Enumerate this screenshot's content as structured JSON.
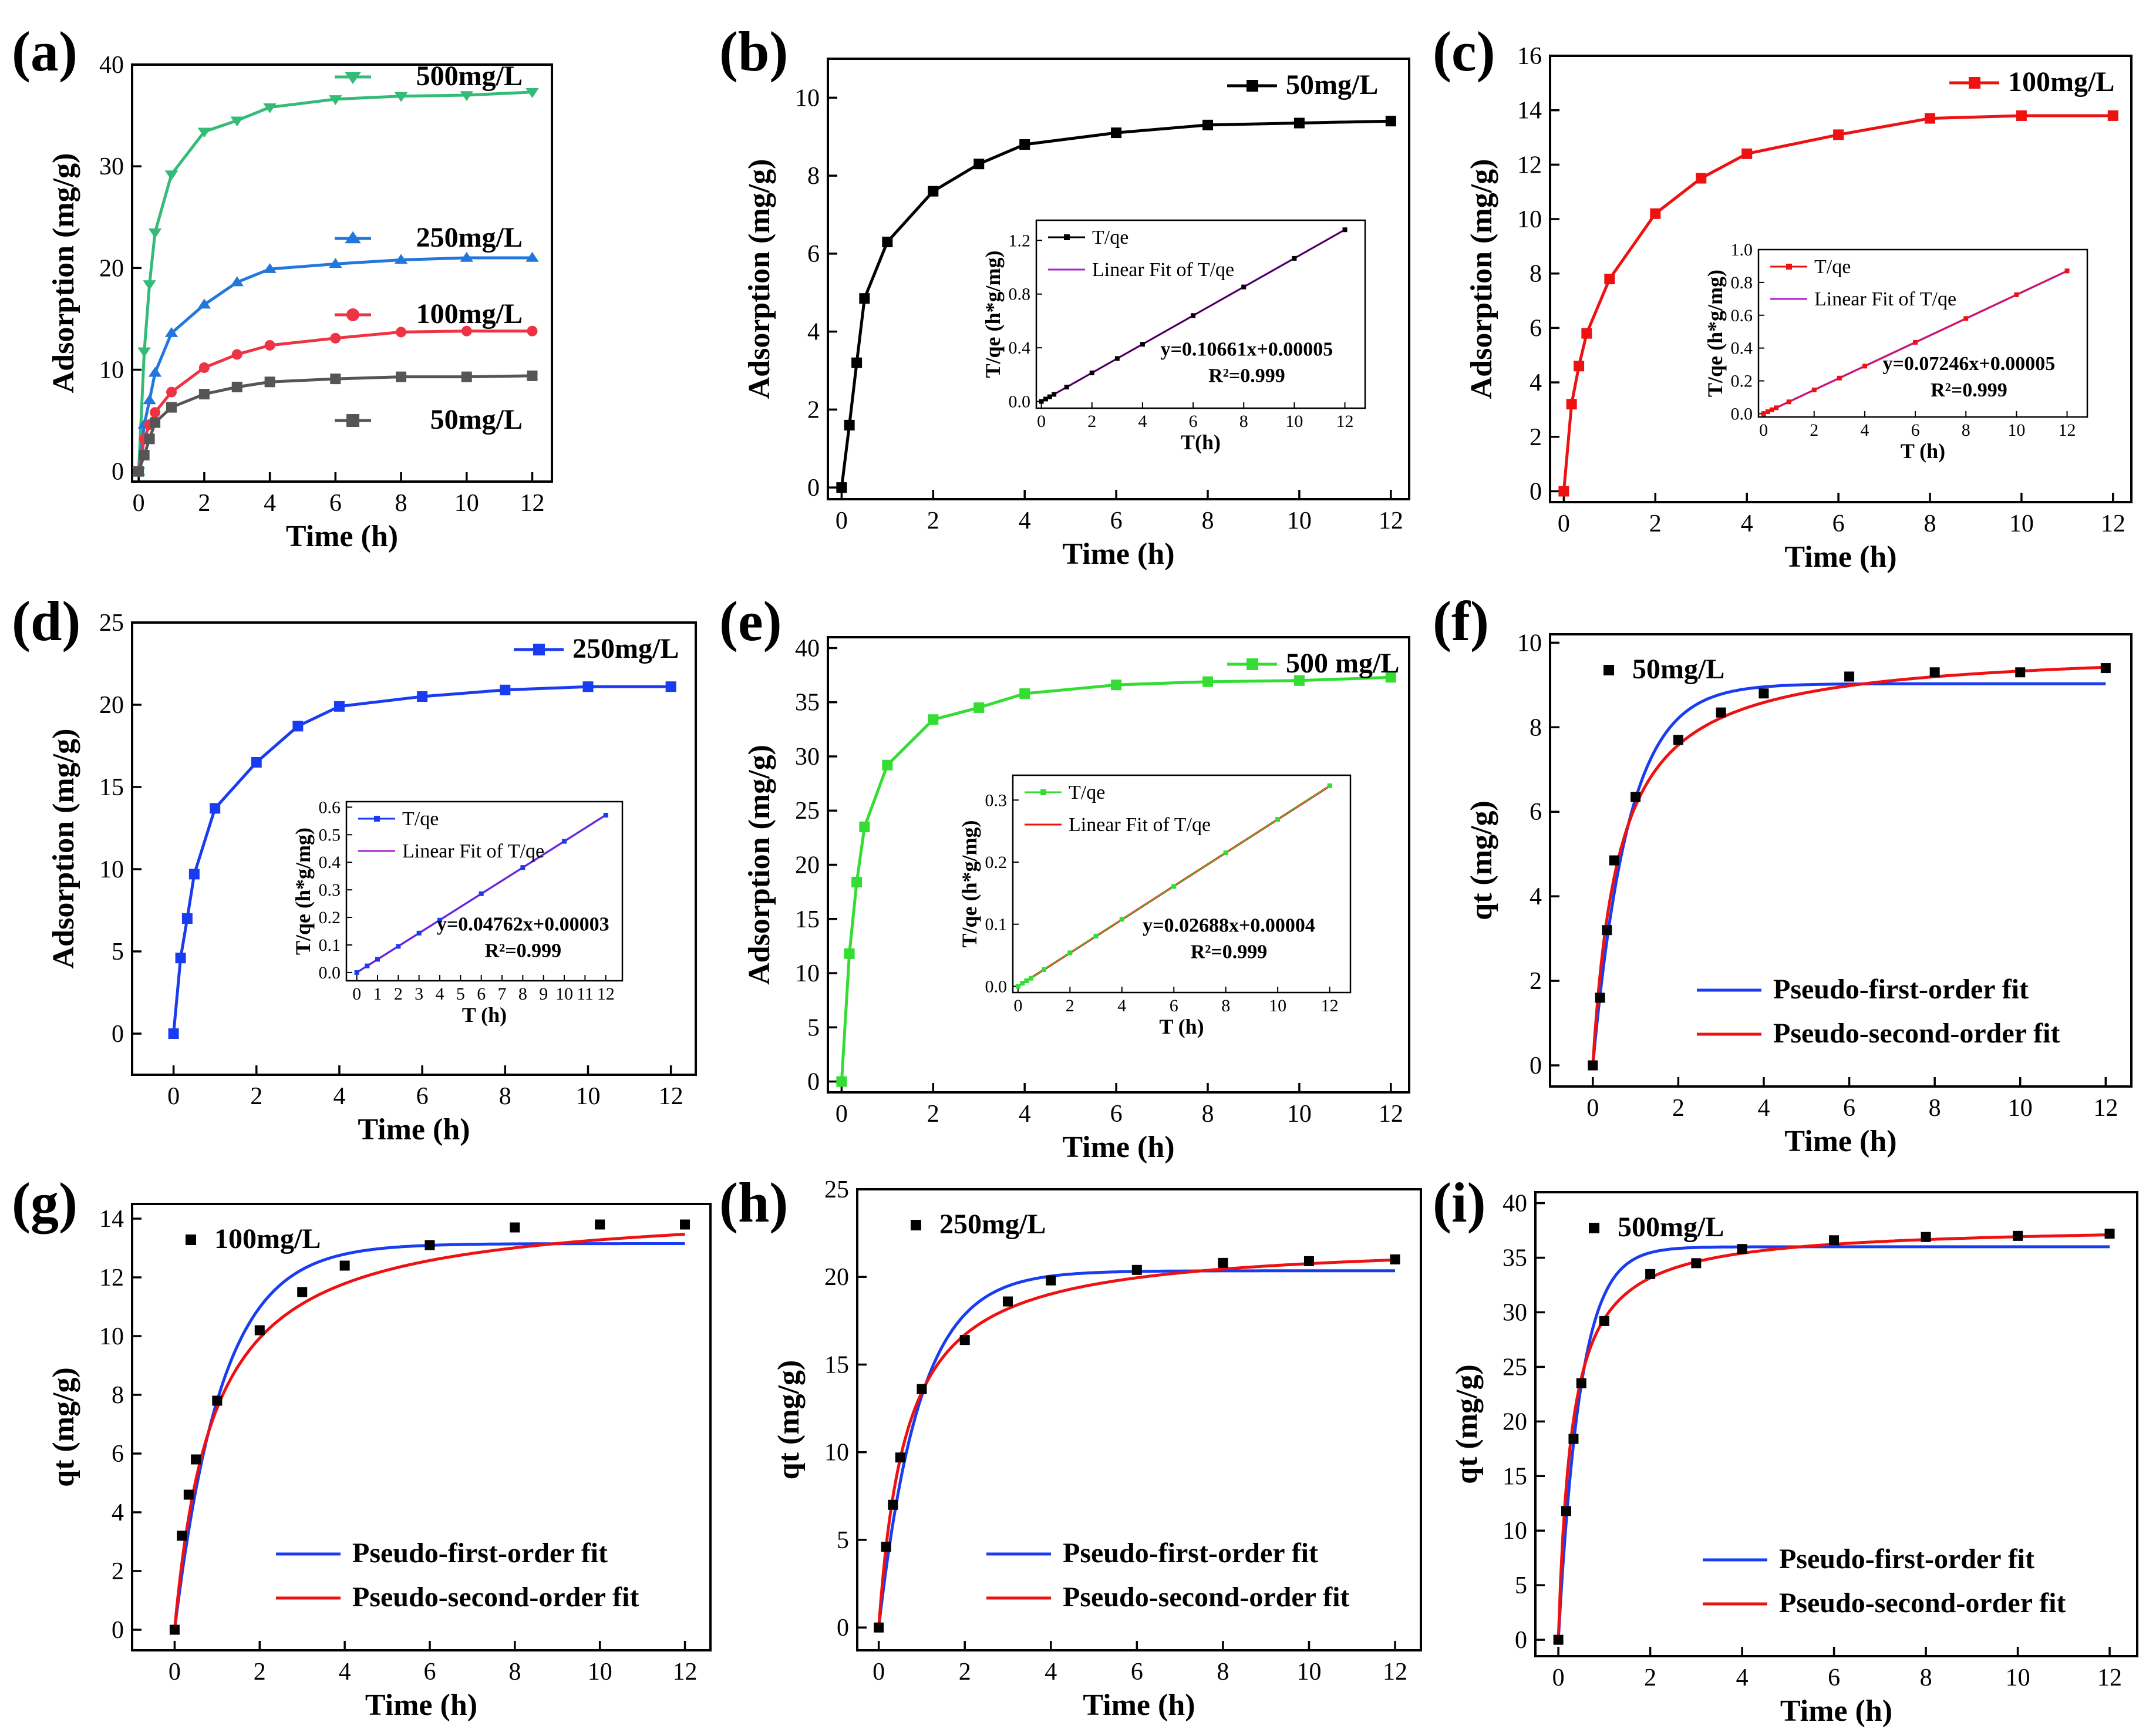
{
  "figure": {
    "colors": {
      "black": "#000000",
      "red": "#ee1111",
      "blue": "#1a3cf0",
      "green": "#33dd33",
      "purple": "#aa22cc",
      "gray": "#555555"
    }
  },
  "chart_data": [
    {
      "id": "a",
      "type": "line",
      "panel_label": "(a)",
      "xlabel": "Time (h)",
      "ylabel": "Adsorption (mg/g)",
      "xlim": [
        -0.2,
        12.6
      ],
      "ylim": [
        -1,
        40
      ],
      "xticks": [
        0,
        2,
        4,
        6,
        8,
        10,
        12
      ],
      "yticks": [
        0,
        10,
        20,
        30,
        40
      ],
      "x": [
        0,
        0.17,
        0.33,
        0.5,
        1,
        2,
        3,
        4,
        6,
        8,
        10,
        12
      ],
      "series": [
        {
          "name": "500mg/L",
          "color": "#33bb77",
          "marker": "triangle-down",
          "values": [
            0,
            11.8,
            18.4,
            23.5,
            29.2,
            33.4,
            34.5,
            35.8,
            36.6,
            36.9,
            37.0,
            37.3
          ]
        },
        {
          "name": "250mg/L",
          "color": "#2277dd",
          "marker": "triangle-up",
          "values": [
            0,
            4.6,
            7.0,
            9.7,
            13.6,
            16.4,
            18.6,
            19.9,
            20.4,
            20.8,
            21.0,
            21.0
          ]
        },
        {
          "name": "100mg/L",
          "color": "#ee3344",
          "marker": "circle",
          "values": [
            0,
            3.2,
            4.6,
            5.8,
            7.8,
            10.2,
            11.5,
            12.4,
            13.1,
            13.7,
            13.8,
            13.8
          ]
        },
        {
          "name": "50mg/L",
          "color": "#555555",
          "marker": "square",
          "values": [
            0,
            1.6,
            3.2,
            4.8,
            6.3,
            7.6,
            8.3,
            8.8,
            9.1,
            9.3,
            9.3,
            9.4
          ]
        }
      ],
      "legend_position": "labels beside curves"
    },
    {
      "id": "b",
      "type": "line",
      "panel_label": "(b)",
      "xlabel": "Time (h)",
      "ylabel": "Adsorption (mg/g)",
      "xlim": [
        -0.3,
        12.4
      ],
      "ylim": [
        -0.3,
        11
      ],
      "xticks": [
        0,
        2,
        4,
        6,
        8,
        10,
        12
      ],
      "yticks": [
        0,
        2,
        4,
        6,
        8,
        10
      ],
      "x": [
        0,
        0.17,
        0.33,
        0.5,
        1,
        2,
        3,
        4,
        6,
        8,
        10,
        12
      ],
      "series": [
        {
          "name": "50mg/L",
          "color": "#000000",
          "marker": "square",
          "values": [
            0,
            1.6,
            3.2,
            4.85,
            6.3,
            7.6,
            8.3,
            8.8,
            9.1,
            9.3,
            9.35,
            9.4
          ]
        }
      ],
      "legend_position": "top-right",
      "inset": {
        "xlabel": "T(h)",
        "ylabel": "T/qe (h*g/mg)",
        "xlim": [
          -0.2,
          12.8
        ],
        "ylim": [
          -0.05,
          1.35
        ],
        "xticks": [
          0,
          2,
          4,
          6,
          8,
          10,
          12
        ],
        "yticks": [
          0.0,
          0.4,
          0.8,
          1.2
        ],
        "x": [
          0,
          0.17,
          0.33,
          0.5,
          1,
          2,
          3,
          4,
          6,
          8,
          10,
          12
        ],
        "values": [
          0,
          0.018,
          0.035,
          0.053,
          0.107,
          0.213,
          0.32,
          0.426,
          0.64,
          0.853,
          1.066,
          1.279
        ],
        "fit": {
          "slope": 0.10661,
          "intercept": 5e-05
        },
        "points_name": "T/qe",
        "fit_name": "Linear Fit of T/qe",
        "points_color": "#000000",
        "fit_color": "#aa22cc",
        "equation": "y=0.10661x+0.00005",
        "r2": "R²=0.999",
        "legend_position": "top-left"
      }
    },
    {
      "id": "c",
      "type": "line",
      "panel_label": "(c)",
      "xlabel": "Time (h)",
      "ylabel": "Adsorption (mg/g)",
      "xlim": [
        -0.3,
        12.4
      ],
      "ylim": [
        -0.4,
        16
      ],
      "xticks": [
        0,
        2,
        4,
        6,
        8,
        10,
        12
      ],
      "yticks": [
        0,
        2,
        4,
        6,
        8,
        10,
        12,
        14,
        16
      ],
      "x": [
        0,
        0.17,
        0.33,
        0.5,
        1,
        2,
        3,
        4,
        6,
        8,
        10,
        12
      ],
      "series": [
        {
          "name": "100mg/L",
          "color": "#ee1111",
          "marker": "square",
          "values": [
            0,
            3.2,
            4.6,
            5.8,
            7.8,
            10.2,
            11.5,
            12.4,
            13.1,
            13.7,
            13.8,
            13.8
          ]
        }
      ],
      "legend_position": "top-right",
      "inset": {
        "xlabel": "T (h)",
        "ylabel": "T/qe (h*g/mg)",
        "xlim": [
          -0.2,
          12.8
        ],
        "ylim": [
          -0.02,
          1.0
        ],
        "xticks": [
          0,
          2,
          4,
          6,
          8,
          10,
          12
        ],
        "yticks": [
          0.0,
          0.2,
          0.4,
          0.6,
          0.8,
          1.0
        ],
        "x": [
          0,
          0.17,
          0.33,
          0.5,
          1,
          2,
          3,
          4,
          6,
          8,
          10,
          12
        ],
        "values": [
          0,
          0.012,
          0.024,
          0.036,
          0.072,
          0.145,
          0.217,
          0.29,
          0.435,
          0.58,
          0.725,
          0.87
        ],
        "fit": {
          "slope": 0.07246,
          "intercept": 5e-05
        },
        "points_name": "T/qe",
        "fit_name": "Linear Fit of T/qe",
        "points_color": "#ee1111",
        "fit_color": "#aa22cc",
        "equation": "y=0.07246x+0.00005",
        "r2": "R²=0.999",
        "legend_position": "top-left"
      }
    },
    {
      "id": "d",
      "type": "line",
      "panel_label": "(d)",
      "xlabel": "Time (h)",
      "ylabel": "Adsorption (mg/g)",
      "xlim": [
        -1,
        12.6
      ],
      "ylim": [
        -2.5,
        25
      ],
      "xticks": [
        0,
        2,
        4,
        6,
        8,
        10,
        12
      ],
      "yticks": [
        0,
        5,
        10,
        15,
        20,
        25
      ],
      "x": [
        0,
        0.17,
        0.33,
        0.5,
        1,
        2,
        3,
        4,
        6,
        8,
        10,
        12
      ],
      "series": [
        {
          "name": "250mg/L",
          "color": "#1a3cf0",
          "marker": "square",
          "values": [
            0,
            4.6,
            7.0,
            9.7,
            13.7,
            16.5,
            18.7,
            19.9,
            20.5,
            20.9,
            21.1,
            21.1
          ]
        }
      ],
      "legend_position": "top-right",
      "inset": {
        "xlabel": "T (h)",
        "ylabel": "T/qe (h*g/mg)",
        "xlim": [
          -0.5,
          12.8
        ],
        "ylim": [
          -0.03,
          0.62
        ],
        "xticks": [
          0,
          1,
          2,
          3,
          4,
          5,
          6,
          7,
          8,
          9,
          10,
          11,
          12
        ],
        "yticks": [
          0.0,
          0.1,
          0.2,
          0.3,
          0.4,
          0.5,
          0.6
        ],
        "x": [
          0,
          0.5,
          1,
          2,
          3,
          4,
          6,
          8,
          10,
          12
        ],
        "values": [
          0,
          0.024,
          0.048,
          0.095,
          0.143,
          0.19,
          0.286,
          0.381,
          0.476,
          0.571
        ],
        "fit": {
          "slope": 0.04762,
          "intercept": 3e-05
        },
        "points_name": "T/qe",
        "fit_name": "Linear Fit of T/qe",
        "points_color": "#1a3cf0",
        "fit_color": "#aa22cc",
        "equation": "y=0.04762x+0.00003",
        "r2": "R²=0.999",
        "legend_position": "top-left"
      }
    },
    {
      "id": "e",
      "type": "line",
      "panel_label": "(e)",
      "xlabel": "Time (h)",
      "ylabel": "Adsorption (mg/g)",
      "xlim": [
        -0.3,
        12.4
      ],
      "ylim": [
        -1,
        41
      ],
      "xticks": [
        0,
        2,
        4,
        6,
        8,
        10,
        12
      ],
      "yticks": [
        0,
        5,
        10,
        15,
        20,
        25,
        30,
        35,
        40
      ],
      "x": [
        0,
        0.17,
        0.33,
        0.5,
        1,
        2,
        3,
        4,
        6,
        8,
        10,
        12
      ],
      "series": [
        {
          "name": "500 mg/L",
          "color": "#33dd33",
          "marker": "square",
          "values": [
            0,
            11.8,
            18.4,
            23.5,
            29.2,
            33.4,
            34.5,
            35.8,
            36.6,
            36.9,
            37.0,
            37.3
          ]
        }
      ],
      "legend_position": "top-right",
      "inset": {
        "xlabel": "T (h)",
        "ylabel": "T/qe (h*g/mg)",
        "xlim": [
          -0.2,
          12.8
        ],
        "ylim": [
          -0.01,
          0.34
        ],
        "xticks": [
          0,
          2,
          4,
          6,
          8,
          10,
          12
        ],
        "yticks": [
          0.0,
          0.1,
          0.2,
          0.3
        ],
        "x": [
          0,
          0.17,
          0.33,
          0.5,
          1,
          2,
          3,
          4,
          6,
          8,
          10,
          12
        ],
        "values": [
          0,
          0.005,
          0.009,
          0.013,
          0.027,
          0.054,
          0.081,
          0.108,
          0.161,
          0.215,
          0.269,
          0.323
        ],
        "fit": {
          "slope": 0.02688,
          "intercept": 4e-05
        },
        "points_name": "T/qe",
        "fit_name": "Linear Fit of T/qe",
        "points_color": "#33dd33",
        "fit_color": "#ee1111",
        "equation": "y=0.02688x+0.00004",
        "r2": "R²=0.999",
        "legend_position": "top-left"
      }
    },
    {
      "id": "f",
      "type": "scatter",
      "panel_label": "(f)",
      "xlabel": "Time (h)",
      "ylabel": "qt (mg/g)",
      "xlim": [
        -1,
        12.6
      ],
      "ylim": [
        -0.5,
        10.2
      ],
      "xticks": [
        0,
        2,
        4,
        6,
        8,
        10,
        12
      ],
      "yticks": [
        0,
        2,
        4,
        6,
        8,
        10
      ],
      "x": [
        0,
        0.17,
        0.33,
        0.5,
        1,
        2,
        3,
        4,
        6,
        8,
        10,
        12
      ],
      "points": {
        "name": "50mg/L",
        "color": "#000000",
        "values": [
          0,
          1.6,
          3.2,
          4.85,
          6.35,
          7.7,
          8.35,
          8.8,
          9.2,
          9.3,
          9.3,
          9.4
        ]
      },
      "fits": [
        {
          "name": "Pseudo-first-order fit",
          "color": "#1a3cf0",
          "model": "pfo",
          "qe": 9.03,
          "k": 1.2
        },
        {
          "name": "Pseudo-second-order fit",
          "color": "#ee1111",
          "model": "pso",
          "qe": 9.9,
          "k": 0.165
        }
      ],
      "legend_position": "bottom-right"
    },
    {
      "id": "g",
      "type": "scatter",
      "panel_label": "(g)",
      "xlabel": "Time (h)",
      "ylabel": "qt (mg/g)",
      "xlim": [
        -1,
        12.6
      ],
      "ylim": [
        -0.7,
        14.5
      ],
      "xticks": [
        0,
        2,
        4,
        6,
        8,
        10,
        12
      ],
      "yticks": [
        0,
        2,
        4,
        6,
        8,
        10,
        12,
        14
      ],
      "x": [
        0,
        0.17,
        0.33,
        0.5,
        1,
        2,
        3,
        4,
        6,
        8,
        10,
        12
      ],
      "points": {
        "name": "100mg/L",
        "color": "#000000",
        "values": [
          0,
          3.2,
          4.6,
          5.8,
          7.8,
          10.2,
          11.5,
          12.4,
          13.1,
          13.7,
          13.8,
          13.8
        ]
      },
      "fits": [
        {
          "name": "Pseudo-first-order fit",
          "color": "#1a3cf0",
          "model": "pfo",
          "qe": 13.15,
          "k": 0.9
        },
        {
          "name": "Pseudo-second-order fit",
          "color": "#ee1111",
          "model": "pso",
          "qe": 14.5,
          "k": 0.075
        }
      ],
      "legend_position": "bottom-right"
    },
    {
      "id": "h",
      "type": "scatter",
      "panel_label": "(h)",
      "xlabel": "Time (h)",
      "ylabel": "qt (mg/g)",
      "xlim": [
        -0.5,
        12.6
      ],
      "ylim": [
        -1.3,
        25
      ],
      "xticks": [
        0,
        2,
        4,
        6,
        8,
        10,
        12
      ],
      "yticks": [
        0,
        5,
        10,
        15,
        20,
        25
      ],
      "x": [
        0,
        0.17,
        0.33,
        0.5,
        1,
        2,
        3,
        4,
        6,
        8,
        10,
        12
      ],
      "points": {
        "name": "250mg/L",
        "color": "#000000",
        "values": [
          0,
          4.6,
          7.0,
          9.7,
          13.6,
          16.4,
          18.6,
          19.8,
          20.4,
          20.8,
          20.9,
          21.0
        ]
      },
      "fits": [
        {
          "name": "Pseudo-first-order fit",
          "color": "#1a3cf0",
          "model": "pfo",
          "qe": 20.35,
          "k": 1.05
        },
        {
          "name": "Pseudo-second-order fit",
          "color": "#ee1111",
          "model": "pso",
          "qe": 22.1,
          "k": 0.07
        }
      ],
      "legend_position": "bottom-right"
    },
    {
      "id": "i",
      "type": "scatter",
      "panel_label": "(i)",
      "xlabel": "Time (h)",
      "ylabel": "qt (mg/g)",
      "xlim": [
        -0.5,
        12.6
      ],
      "ylim": [
        -1.5,
        41
      ],
      "xticks": [
        0,
        2,
        4,
        6,
        8,
        10,
        12
      ],
      "yticks": [
        0,
        5,
        10,
        15,
        20,
        25,
        30,
        35,
        40
      ],
      "x": [
        0,
        0.17,
        0.33,
        0.5,
        1,
        2,
        3,
        4,
        6,
        8,
        10,
        12
      ],
      "points": {
        "name": "500mg/L",
        "color": "#000000",
        "values": [
          0,
          11.8,
          18.4,
          23.5,
          29.2,
          33.5,
          34.5,
          35.8,
          36.6,
          36.9,
          37.0,
          37.2
        ]
      },
      "fits": [
        {
          "name": "Pseudo-first-order fit",
          "color": "#1a3cf0",
          "model": "pfo",
          "qe": 36.0,
          "k": 2.1
        },
        {
          "name": "Pseudo-second-order fit",
          "color": "#ee1111",
          "model": "pso",
          "qe": 38.0,
          "k": 0.09
        }
      ],
      "legend_position": "bottom-right"
    }
  ]
}
